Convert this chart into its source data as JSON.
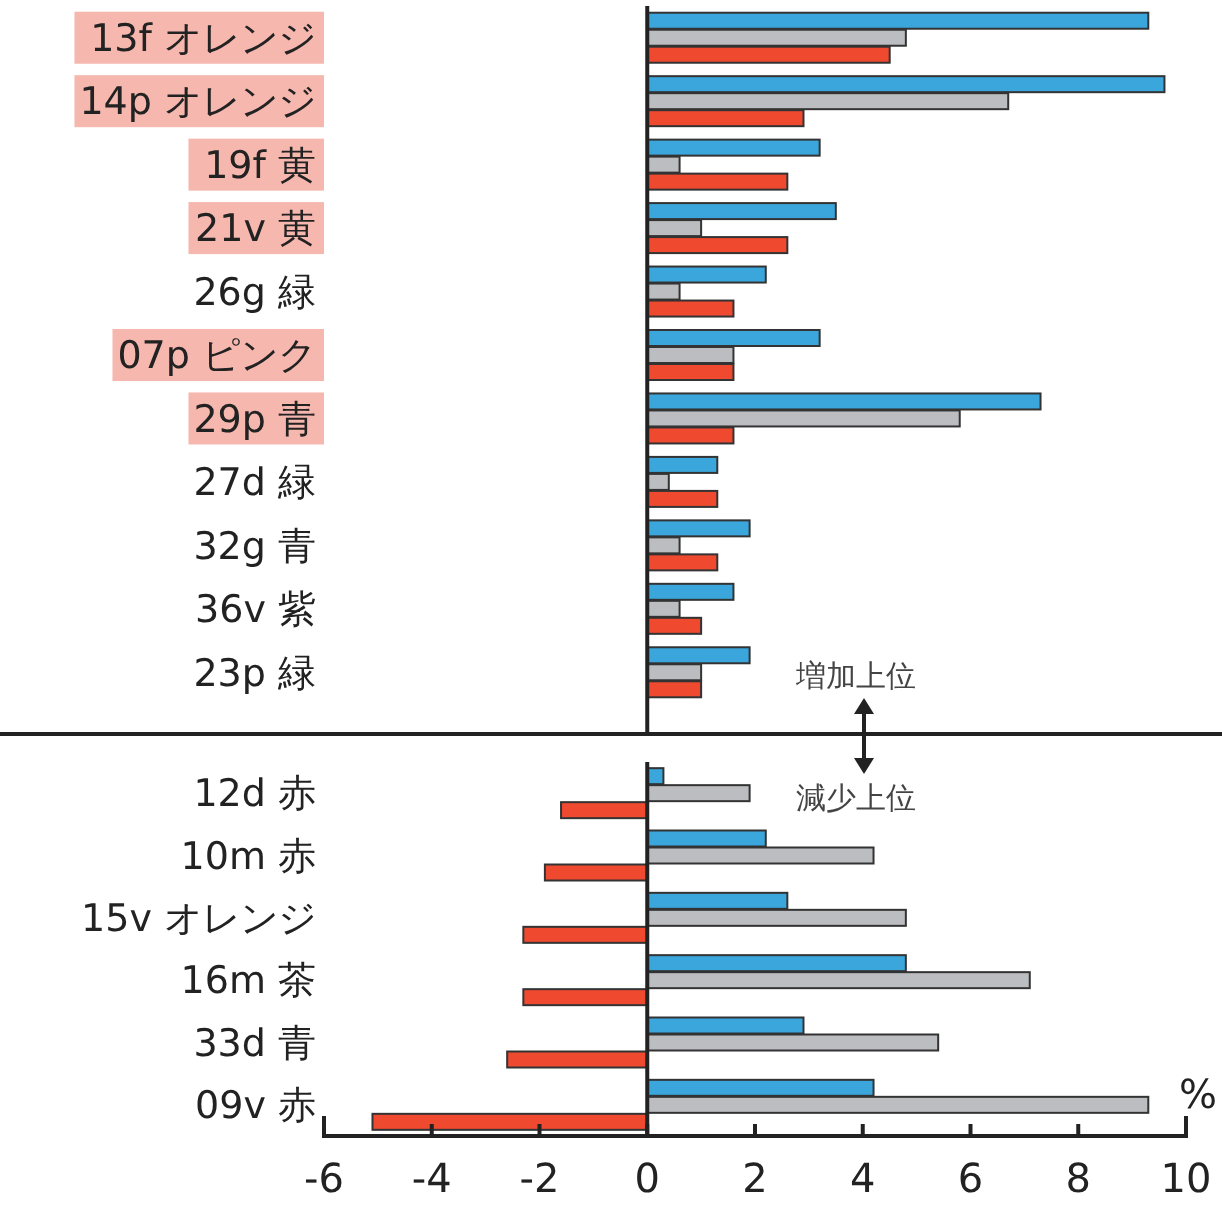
{
  "chart_data": [
    {
      "type": "bar",
      "orientation": "horizontal",
      "tick_labels": "y",
      "xlim": [
        -6,
        10
      ],
      "categories": [
        "13f オレンジ",
        "14p オレンジ",
        "19f 黄",
        "21v 黄",
        "26g 緑",
        "07p ピンク",
        "29p 青",
        "27d 緑",
        "32g 青",
        "36v 紫",
        "23p 緑"
      ],
      "series": [
        {
          "color": "#3aa6dc",
          "values": [
            9.3,
            9.6,
            3.2,
            3.5,
            2.2,
            3.2,
            7.3,
            1.3,
            1.9,
            1.6,
            1.9
          ]
        },
        {
          "color": "#bcbdc0",
          "values": [
            4.8,
            6.7,
            0.6,
            1.0,
            0.6,
            1.6,
            5.8,
            0.4,
            0.6,
            0.6,
            1.0
          ]
        },
        {
          "color": "#ef4a30",
          "values": [
            4.5,
            2.9,
            2.6,
            2.6,
            1.6,
            1.6,
            1.6,
            1.3,
            1.3,
            1.0,
            1.0
          ]
        }
      ],
      "annotations": [
        "増加上位"
      ]
    },
    {
      "type": "bar",
      "orientation": "horizontal",
      "xlabel": "%",
      "xlim": [
        -6,
        10
      ],
      "xticks": [
        -6,
        -4,
        -2,
        0,
        2,
        4,
        6,
        8,
        10
      ],
      "categories": [
        "12d 赤",
        "10m 赤",
        "15v オレンジ",
        "16m 茶",
        "33d 青",
        "09v 赤"
      ],
      "series": [
        {
          "color": "#3aa6dc",
          "values": [
            0.3,
            2.2,
            2.6,
            4.8,
            2.9,
            4.2
          ]
        },
        {
          "color": "#bcbdc0",
          "values": [
            1.9,
            4.2,
            4.8,
            7.1,
            5.4,
            9.3
          ]
        },
        {
          "color": "#ef4a30",
          "values": [
            -1.6,
            -1.9,
            -2.3,
            -2.3,
            -2.6,
            -5.1
          ]
        }
      ],
      "annotations": [
        "減少上位"
      ]
    }
  ]
}
